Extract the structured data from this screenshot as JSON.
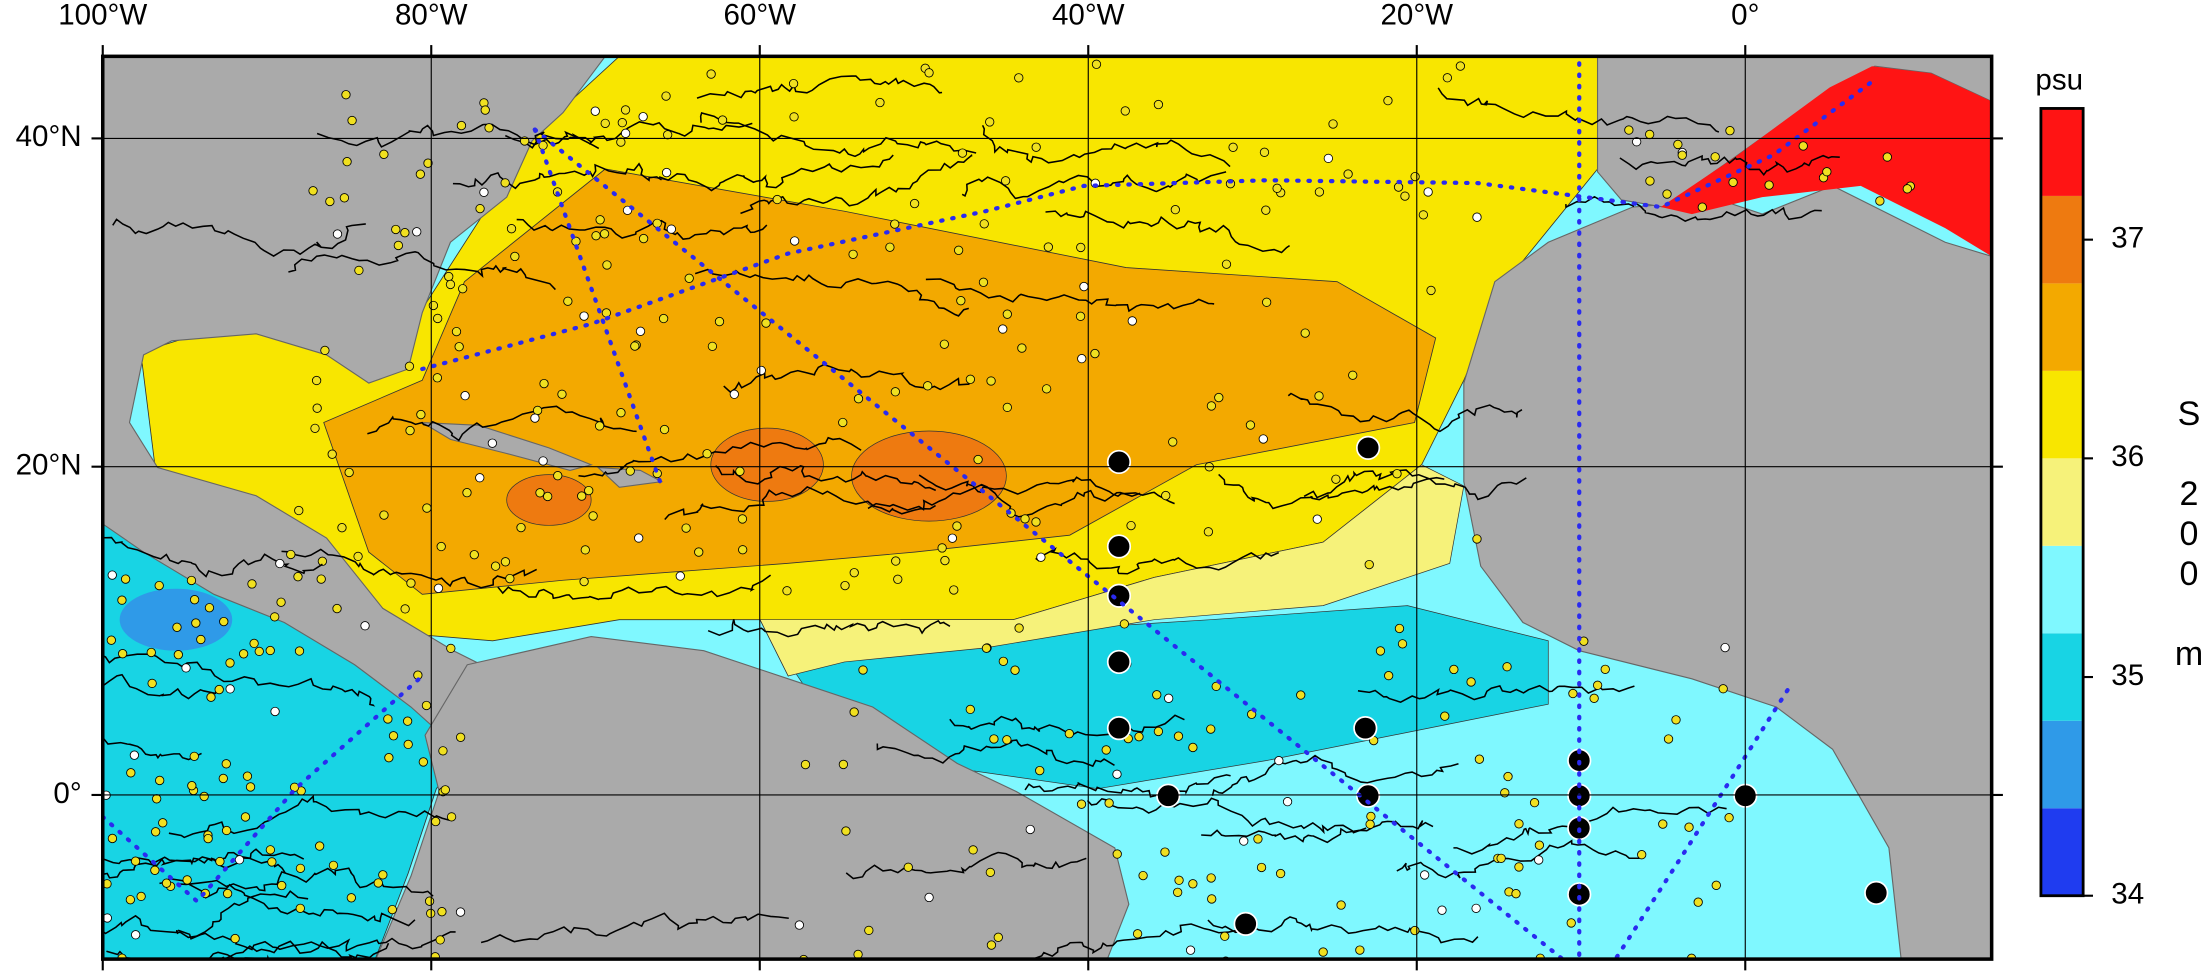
{
  "map": {
    "lonlim": [
      -100,
      15
    ],
    "latlim": [
      -10,
      45
    ],
    "lon_ticks": [
      {
        "value": -100,
        "label": "100°W"
      },
      {
        "value": -80,
        "label": "80°W"
      },
      {
        "value": -60,
        "label": "60°W"
      },
      {
        "value": -40,
        "label": "40°W"
      },
      {
        "value": -20,
        "label": "20°W"
      },
      {
        "value": 0,
        "label": "0°"
      }
    ],
    "lat_ticks": [
      {
        "value": 0,
        "label": "0°"
      },
      {
        "value": 20,
        "label": "20°N"
      },
      {
        "value": 40,
        "label": "40°N"
      }
    ]
  },
  "colorbar": {
    "title": "psu",
    "lim": [
      34,
      37.6
    ],
    "ticks": [
      34,
      35,
      36,
      37
    ],
    "levels": [
      34,
      34.4,
      34.8,
      35.2,
      35.6,
      36,
      36.4,
      36.8,
      37.2,
      37.6
    ],
    "colors": [
      "#1f3cf0",
      "#2f9ae8",
      "#18d4e4",
      "#7ff8ff",
      "#f6f27a",
      "#f8e600",
      "#f3a900",
      "#ee7a10",
      "#ff1414"
    ]
  },
  "variable_label": "S 200 m"
}
